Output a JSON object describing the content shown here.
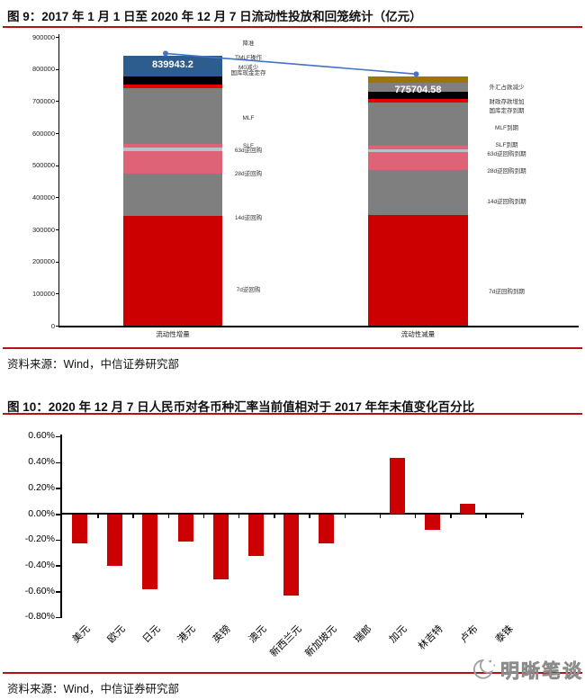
{
  "figure9": {
    "title": "图 9：2017 年 1 月 1 日至 2020 年 12 月 7 日流动性投放和回笼统计（亿元）",
    "source": "资料来源：Wind，中信证券研究部",
    "chart_data": {
      "type": "stacked-bar",
      "unit": "亿元",
      "ylim": [
        0,
        900000
      ],
      "y_ticks": [
        0,
        100000,
        200000,
        300000,
        400000,
        500000,
        600000,
        700000,
        800000,
        900000
      ],
      "grid": false,
      "segments_order": "bottom-to-top",
      "connector": {
        "color": "#4472C4",
        "values": [
          839943.2,
          775704.58
        ]
      },
      "bars": [
        {
          "category": "流动性增量",
          "total": 839943.2,
          "total_label": "839943.2",
          "segments": [
            {
              "label": "7d逆回购",
              "value": 343000,
              "color": "#CC0000"
            },
            {
              "label": "14d逆回购",
              "value": 130500,
              "color": "#7F7F7F"
            },
            {
              "label": "28d逆回购",
              "value": 70300,
              "color": "#DE6377"
            },
            {
              "label": "63d逆回购",
              "value": 11400,
              "color": "#B8C2CC"
            },
            {
              "label": "SLF",
              "value": 11400,
              "color": "#DE6377"
            },
            {
              "label": "MLF",
              "value": 174500,
              "color": "#7F7F7F"
            },
            {
              "label": "国库现金定存",
              "value": 11500,
              "color": "#E60000"
            },
            {
              "label": "M0减少",
              "value": 25400,
              "color": "#000000"
            },
            {
              "label": "TMLF操作",
              "value": 2000,
              "color": "#2D5C8E"
            },
            {
              "label": "降准",
              "value": 59943.2,
              "color": "#2D5C8E"
            }
          ],
          "side_labels": [
            {
              "text": "降准",
              "at": 877000
            },
            {
              "text": "TMLF操作",
              "at": 834000
            },
            {
              "text": "M0减少",
              "at": 802000
            },
            {
              "text": "国库现金定存",
              "at": 786000
            },
            {
              "text": "MLF",
              "at": 645000
            },
            {
              "text": "SLF",
              "at": 559000
            },
            {
              "text": "63d逆回购",
              "at": 543000
            },
            {
              "text": "28d逆回购",
              "at": 470000
            },
            {
              "text": "14d逆回购",
              "at": 334000
            },
            {
              "text": "7d逆回购",
              "at": 108000
            }
          ]
        },
        {
          "category": "流动性减量",
          "total": 775704.58,
          "total_label": "775704.58",
          "segments": [
            {
              "label": "7d逆回购到期",
              "value": 345000,
              "color": "#CC0000"
            },
            {
              "label": "14d逆回购到期",
              "value": 139000,
              "color": "#7F7F7F"
            },
            {
              "label": "28d逆回购到期",
              "value": 57000,
              "color": "#DE6377"
            },
            {
              "label": "63d逆回购到期",
              "value": 9500,
              "color": "#B8C2CC"
            },
            {
              "label": "SLF到期",
              "value": 11500,
              "color": "#DE6377"
            },
            {
              "label": "MLF到期",
              "value": 133000,
              "color": "#7F7F7F"
            },
            {
              "label": "国库定存到期",
              "value": 11500,
              "color": "#E60000"
            },
            {
              "label": "财政存款增加",
              "value": 22000,
              "color": "#000000"
            },
            {
              "label": "",
              "value": 28000,
              "color": "#7F7F7F"
            },
            {
              "label": "外汇占款减少",
              "value": 19204.58,
              "color": "#9A7608"
            }
          ],
          "side_labels": [
            {
              "text": "外汇占款减少",
              "at": 741000
            },
            {
              "text": "财政存款增加",
              "at": 695000
            },
            {
              "text": "国库定存到期",
              "at": 666000
            },
            {
              "text": "MLF到期",
              "at": 613000
            },
            {
              "text": "SLF到期",
              "at": 560000
            },
            {
              "text": "63d逆回购到期",
              "at": 532000
            },
            {
              "text": "28d逆回购到期",
              "at": 480000
            },
            {
              "text": "14d逆回购到期",
              "at": 384000
            },
            {
              "text": "7d逆回购到期",
              "at": 103000
            }
          ]
        }
      ]
    }
  },
  "figure10": {
    "title": "图 10：2020 年 12 月 7 日人民币对各币种汇率当前值相对于 2017 年年末值变化百分比",
    "source": "资料来源：Wind，中信证券研究部",
    "chart_data": {
      "type": "bar",
      "unit": "%",
      "categories": [
        "美元",
        "欧元",
        "日元",
        "港元",
        "英镑",
        "澳元",
        "新西兰元",
        "新加坡元",
        "瑞郎",
        "加元",
        "林吉特",
        "卢布",
        "泰铢"
      ],
      "values": [
        -0.22,
        -0.4,
        -0.58,
        -0.21,
        -0.5,
        -0.32,
        -0.63,
        -0.22,
        0,
        0.43,
        -0.12,
        0.08,
        0
      ],
      "bar_color": "#CC0000",
      "ylim": [
        -0.8,
        0.6
      ],
      "y_ticks": [
        0.6,
        0.4,
        0.2,
        0,
        -0.2,
        -0.4,
        -0.6,
        -0.8
      ],
      "grid": false,
      "legend": false
    }
  },
  "watermark": {
    "text": "明晰笔谈",
    "icon": "crescent-moon-icon"
  }
}
